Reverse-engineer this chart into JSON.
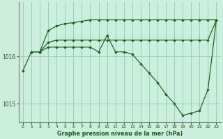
{
  "background_color": "#cceedd",
  "grid_color": "#99ccbb",
  "line_color": "#1a5c1a",
  "xlabel": "Graphe pression niveau de la mer (hPa)",
  "xlim": [
    -0.5,
    23.5
  ],
  "ylim": [
    1014.6,
    1017.15
  ],
  "yticks": [
    1015,
    1016
  ],
  "xticks": [
    0,
    1,
    2,
    3,
    4,
    5,
    6,
    7,
    8,
    9,
    10,
    11,
    12,
    13,
    14,
    15,
    16,
    17,
    18,
    19,
    20,
    21,
    22,
    23
  ],
  "series": [
    {
      "x": [
        1,
        2,
        3,
        4,
        5,
        6,
        7,
        8,
        9,
        10,
        11,
        12,
        13,
        14,
        15,
        16,
        17,
        18,
        19,
        20,
        21,
        22,
        23
      ],
      "y": [
        1016.1,
        1016.1,
        1016.55,
        1016.65,
        1016.7,
        1016.72,
        1016.75,
        1016.78,
        1016.78,
        1016.78,
        1016.78,
        1016.78,
        1016.78,
        1016.78,
        1016.78,
        1016.78,
        1016.78,
        1016.78,
        1016.78,
        1016.78,
        1016.78,
        1016.78,
        1016.78
      ]
    },
    {
      "x": [
        1,
        2,
        3,
        4,
        5,
        6,
        7,
        8,
        9,
        10,
        11,
        12,
        13,
        14,
        15,
        16,
        17,
        18,
        19,
        20,
        21,
        22,
        23
      ],
      "y": [
        1016.1,
        1016.1,
        1016.3,
        1016.35,
        1016.35,
        1016.35,
        1016.35,
        1016.35,
        1016.35,
        1016.35,
        1016.35,
        1016.35,
        1016.35,
        1016.35,
        1016.35,
        1016.35,
        1016.35,
        1016.35,
        1016.35,
        1016.35,
        1016.35,
        1016.35,
        1016.78
      ]
    },
    {
      "x": [
        0,
        1,
        2,
        3,
        4,
        5,
        6,
        7,
        8,
        9,
        10,
        11,
        12,
        13,
        14,
        15,
        16,
        17,
        18,
        19,
        20,
        21,
        22,
        23
      ],
      "y": [
        1015.7,
        1016.1,
        1016.1,
        1016.2,
        1016.2,
        1016.2,
        1016.2,
        1016.2,
        1016.2,
        1016.1,
        1016.45,
        1016.1,
        1016.1,
        1016.05,
        1015.85,
        1015.65,
        1015.45,
        1015.2,
        1015.0,
        1014.75,
        1014.8,
        1014.85,
        1015.3,
        1016.78
      ]
    }
  ]
}
